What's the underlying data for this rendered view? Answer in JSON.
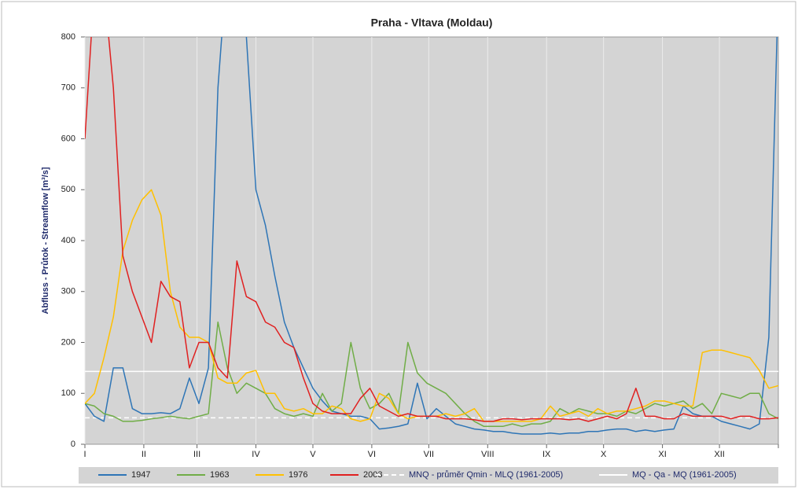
{
  "chart_data": {
    "type": "line",
    "title": "Praha - Vltava (Moldau)",
    "ylabel": "Abfluss - Průtok - Streamflow  [m³/s]",
    "x": [
      0,
      5,
      10,
      15,
      20,
      25,
      30,
      35,
      40,
      45,
      50,
      55,
      60,
      65,
      70,
      75,
      80,
      85,
      90,
      95,
      100,
      105,
      110,
      115,
      120,
      125,
      130,
      135,
      140,
      145,
      150,
      155,
      160,
      165,
      170,
      175,
      180,
      185,
      190,
      195,
      200,
      205,
      210,
      215,
      220,
      225,
      230,
      235,
      240,
      245,
      250,
      255,
      260,
      265,
      270,
      275,
      280,
      285,
      290,
      295,
      300,
      305,
      310,
      315,
      320,
      325,
      330,
      335,
      340,
      345,
      350,
      355,
      360,
      365
    ],
    "xlim": [
      0,
      365
    ],
    "xticks": [
      {
        "value": 0,
        "label": "I"
      },
      {
        "value": 31,
        "label": "II"
      },
      {
        "value": 59,
        "label": "III"
      },
      {
        "value": 90,
        "label": "IV"
      },
      {
        "value": 120,
        "label": "V"
      },
      {
        "value": 151,
        "label": "VI"
      },
      {
        "value": 181,
        "label": "VII"
      },
      {
        "value": 212,
        "label": "VIII"
      },
      {
        "value": 243,
        "label": "IX"
      },
      {
        "value": 273,
        "label": "X"
      },
      {
        "value": 304,
        "label": "XI"
      },
      {
        "value": 334,
        "label": "XII"
      }
    ],
    "ylim": [
      0,
      800
    ],
    "yticks": [
      0,
      100,
      200,
      300,
      400,
      500,
      600,
      700,
      800
    ],
    "grid": true,
    "series": [
      {
        "name": "1947",
        "color": "#2e75b6",
        "values": [
          80,
          55,
          45,
          150,
          150,
          70,
          60,
          60,
          62,
          60,
          70,
          130,
          80,
          150,
          700,
          950,
          950,
          800,
          500,
          430,
          330,
          240,
          190,
          150,
          110,
          85,
          65,
          60,
          55,
          55,
          50,
          30,
          32,
          35,
          40,
          120,
          50,
          70,
          55,
          40,
          35,
          30,
          28,
          25,
          25,
          22,
          20,
          20,
          20,
          22,
          20,
          22,
          22,
          25,
          25,
          28,
          30,
          30,
          25,
          28,
          25,
          28,
          30,
          75,
          60,
          55,
          55,
          45,
          40,
          35,
          30,
          40,
          210,
          900
        ]
      },
      {
        "name": "1963",
        "color": "#70ad47",
        "values": [
          80,
          75,
          60,
          55,
          45,
          45,
          47,
          50,
          52,
          55,
          52,
          50,
          55,
          60,
          240,
          150,
          100,
          120,
          110,
          100,
          70,
          60,
          55,
          60,
          55,
          100,
          65,
          80,
          200,
          110,
          70,
          80,
          100,
          60,
          200,
          140,
          120,
          110,
          100,
          80,
          60,
          45,
          35,
          35,
          35,
          40,
          35,
          40,
          40,
          45,
          70,
          60,
          70,
          65,
          60,
          60,
          55,
          65,
          60,
          70,
          80,
          75,
          80,
          85,
          70,
          80,
          60,
          100,
          95,
          90,
          100,
          100,
          60,
          50
        ]
      },
      {
        "name": "1976",
        "color": "#ffc000",
        "values": [
          80,
          100,
          170,
          250,
          380,
          440,
          480,
          500,
          450,
          300,
          230,
          210,
          210,
          200,
          130,
          120,
          120,
          140,
          145,
          100,
          100,
          70,
          65,
          70,
          60,
          60,
          75,
          70,
          50,
          45,
          50,
          100,
          90,
          60,
          50,
          55,
          55,
          55,
          60,
          55,
          60,
          70,
          45,
          45,
          45,
          45,
          45,
          45,
          50,
          75,
          55,
          60,
          65,
          55,
          70,
          60,
          65,
          65,
          70,
          75,
          85,
          85,
          80,
          75,
          75,
          180,
          185,
          185,
          180,
          175,
          170,
          145,
          110,
          115
        ]
      },
      {
        "name": "2003",
        "color": "#e02020",
        "values": [
          600,
          900,
          900,
          700,
          370,
          300,
          250,
          200,
          320,
          290,
          280,
          150,
          200,
          200,
          150,
          130,
          360,
          290,
          280,
          240,
          230,
          200,
          190,
          130,
          80,
          65,
          60,
          60,
          60,
          90,
          110,
          75,
          65,
          55,
          60,
          55,
          55,
          55,
          50,
          50,
          50,
          48,
          45,
          45,
          50,
          50,
          48,
          50,
          50,
          50,
          50,
          48,
          50,
          45,
          50,
          55,
          50,
          60,
          110,
          55,
          55,
          50,
          50,
          60,
          55,
          55,
          55,
          55,
          50,
          55,
          55,
          50,
          50,
          52
        ]
      }
    ],
    "reference_lines": [
      {
        "name": "MNQ - průměr Qmin - MLQ (1961-2005)",
        "value": 52,
        "color": "#ffffff",
        "dashed": true
      },
      {
        "name": "MQ - Qa - MQ (1961-2005)",
        "value": 143,
        "color": "#ffffff",
        "dashed": false
      }
    ]
  }
}
